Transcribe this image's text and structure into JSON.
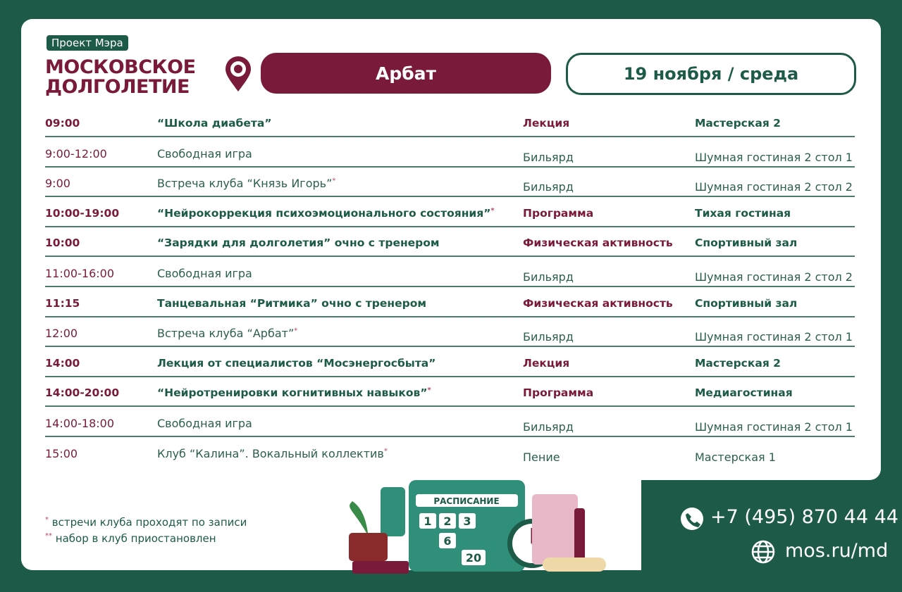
{
  "header": {
    "badge": "Проект Мэра",
    "logo": [
      "МОСКОВСКОЕ",
      "ДОЛГОЛЕТИЕ"
    ],
    "location": "Арбат",
    "date": "19 ноября / среда"
  },
  "schedule": {
    "rows": [
      {
        "time": "09:00",
        "title": "“Школа диабета”",
        "type": "Лекция",
        "place": "Мастерская 2",
        "bold": true
      },
      {
        "time": "9:00-12:00",
        "title": "Свободная игра",
        "type": "Бильярд",
        "place": "Шумная гостиная 2 стол 1",
        "bold": false
      },
      {
        "time": "9:00",
        "title": "Встреча клуба “Князь Игорь”",
        "note": "*",
        "type": "Бильярд",
        "place": "Шумная гостиная 2 стол 2",
        "bold": false
      },
      {
        "time": "10:00-19:00",
        "title": "“Нейрокоррекция психоэмоционального состояния”",
        "note": "*",
        "type": "Программа",
        "place": "Тихая гостиная",
        "bold": true
      },
      {
        "time": "10:00",
        "title": "“Зарядки для долголетия” очно с тренером",
        "type": "Физическая активность",
        "place": "Спортивный зал",
        "bold": true
      },
      {
        "time": "11:00-16:00",
        "title": "Свободная игра",
        "type": "Бильярд",
        "place": "Шумная гостиная 2 стол 2",
        "bold": false
      },
      {
        "time": "11:15",
        "title": "Танцевальная “Ритмика” очно с тренером",
        "type": "Физическая активность",
        "place": "Спортивный зал",
        "bold": true
      },
      {
        "time": "12:00",
        "title": "Встреча клуба “Арбат”",
        "note": "*",
        "type": "Бильярд",
        "place": "Шумная гостиная 2 стол 1",
        "bold": false
      },
      {
        "time": "14:00",
        "title": "Лекция от специалистов “Мосэнергосбыта”",
        "type": "Лекция",
        "place": "Мастерская 2",
        "bold": true
      },
      {
        "time": "14:00-20:00",
        "title": "“Нейротренировки когнитивных навыков”",
        "note": "*",
        "type": "Программа",
        "place": "Медиагостиная",
        "bold": true
      },
      {
        "time": "14:00-18:00",
        "title": "Свободная игра",
        "type": "Бильярд",
        "place": "Шумная гостиная 2 стол 1",
        "bold": false
      },
      {
        "time": "15:00",
        "title": "Клуб “Калина”. Вокальный коллектив",
        "note": "*",
        "type": "Пение",
        "place": "Мастерская 1",
        "bold": false
      }
    ]
  },
  "footnotes": [
    {
      "mark": "*",
      "text": "встречи клуба проходят по записи"
    },
    {
      "mark": "**",
      "text": "набор в клуб приостановлен"
    }
  ],
  "illustration": {
    "title": "РАСПИСАНИЕ",
    "numbers": [
      "1",
      "2",
      "3",
      "6",
      "20"
    ]
  },
  "contacts": {
    "phone": "+7 (495) 870 44 44",
    "site": "mos.ru/md"
  }
}
